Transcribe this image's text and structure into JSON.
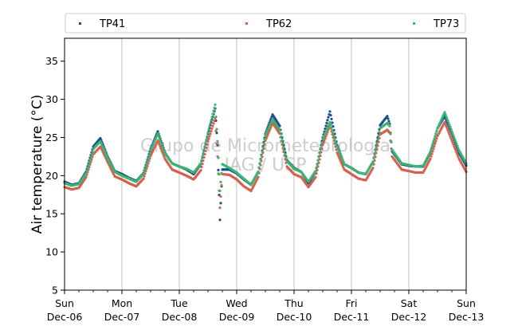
{
  "chart_data": {
    "type": "scatter",
    "title": "",
    "xlabel": "",
    "ylabel": "Air temperature (°C)",
    "ylim": [
      5,
      38
    ],
    "yticks": [
      5,
      10,
      15,
      20,
      25,
      30,
      35
    ],
    "xlim": [
      "2020-12-06",
      "2020-12-13"
    ],
    "xticks": [
      {
        "day": "Sun",
        "date": "Dec-06"
      },
      {
        "day": "Mon",
        "date": "Dec-07"
      },
      {
        "day": "Tue",
        "date": "Dec-08"
      },
      {
        "day": "Wed",
        "date": "Dec-09"
      },
      {
        "day": "Thu",
        "date": "Dec-10"
      },
      {
        "day": "Fri",
        "date": "Dec-11"
      },
      {
        "day": "Sat",
        "date": "Dec-12"
      },
      {
        "day": "Sun",
        "date": "Dec-13"
      }
    ],
    "grid": "vertical at day boundaries",
    "legend_position": "top, above plot",
    "watermark": [
      "Grupo de Micrometeorologia",
      "IAG / USP"
    ],
    "series": [
      {
        "name": "TP41",
        "color": "#1f4e8c",
        "points": [
          [
            "2020-12-06T00:00",
            19.2
          ],
          [
            "2020-12-06T03:00",
            18.8
          ],
          [
            "2020-12-06T06:00",
            19.0
          ],
          [
            "2020-12-06T09:00",
            20.5
          ],
          [
            "2020-12-06T12:00",
            23.8
          ],
          [
            "2020-12-06T15:00",
            24.9
          ],
          [
            "2020-12-06T18:00",
            22.5
          ],
          [
            "2020-12-06T21:00",
            20.6
          ],
          [
            "2020-12-07T00:00",
            20.2
          ],
          [
            "2020-12-07T03:00",
            19.7
          ],
          [
            "2020-12-07T06:00",
            19.3
          ],
          [
            "2020-12-07T09:00",
            20.3
          ],
          [
            "2020-12-07T12:00",
            23.5
          ],
          [
            "2020-12-07T15:00",
            25.8
          ],
          [
            "2020-12-07T18:00",
            23.0
          ],
          [
            "2020-12-07T21:00",
            21.6
          ],
          [
            "2020-12-08T00:00",
            21.2
          ],
          [
            "2020-12-08T03:00",
            20.8
          ],
          [
            "2020-12-08T06:00",
            20.2
          ],
          [
            "2020-12-08T09:00",
            21.5
          ],
          [
            "2020-12-08T12:00",
            25.5
          ],
          [
            "2020-12-08T15:00",
            28.8
          ],
          [
            "2020-12-08T16:00",
            24.0
          ],
          [
            "2020-12-08T17:00",
            14.2
          ],
          [
            "2020-12-08T18:00",
            20.8
          ],
          [
            "2020-12-08T21:00",
            20.8
          ],
          [
            "2020-12-09T00:00",
            20.3
          ],
          [
            "2020-12-09T03:00",
            19.5
          ],
          [
            "2020-12-09T06:00",
            18.8
          ],
          [
            "2020-12-09T09:00",
            20.5
          ],
          [
            "2020-12-09T12:00",
            25.5
          ],
          [
            "2020-12-09T15:00",
            28.0
          ],
          [
            "2020-12-09T18:00",
            26.5
          ],
          [
            "2020-12-09T21:00",
            22.0
          ],
          [
            "2020-12-10T00:00",
            21.0
          ],
          [
            "2020-12-10T03:00",
            20.5
          ],
          [
            "2020-12-10T06:00",
            19.0
          ],
          [
            "2020-12-10T09:00",
            20.5
          ],
          [
            "2020-12-10T12:00",
            25.0
          ],
          [
            "2020-12-10T15:00",
            28.4
          ],
          [
            "2020-12-10T18:00",
            24.0
          ],
          [
            "2020-12-10T21:00",
            21.5
          ],
          [
            "2020-12-11T00:00",
            21.0
          ],
          [
            "2020-12-11T03:00",
            20.4
          ],
          [
            "2020-12-11T06:00",
            20.2
          ],
          [
            "2020-12-11T09:00",
            21.8
          ],
          [
            "2020-12-11T12:00",
            26.6
          ],
          [
            "2020-12-11T15:00",
            27.8
          ],
          [
            "2020-12-11T16:00",
            26.8
          ],
          [
            "2020-12-11T17:00",
            23.2
          ],
          [
            "2020-12-11T21:00",
            21.5
          ],
          [
            "2020-12-12T00:00",
            21.3
          ],
          [
            "2020-12-12T03:00",
            21.2
          ],
          [
            "2020-12-12T06:00",
            21.2
          ],
          [
            "2020-12-12T09:00",
            23.0
          ],
          [
            "2020-12-12T12:00",
            26.2
          ],
          [
            "2020-12-12T15:00",
            27.8
          ],
          [
            "2020-12-12T18:00",
            25.5
          ],
          [
            "2020-12-12T21:00",
            23.0
          ],
          [
            "2020-12-13T00:00",
            21.3
          ]
        ]
      },
      {
        "name": "TP62",
        "color": "#d6604d",
        "points": [
          [
            "2020-12-06T00:00",
            18.5
          ],
          [
            "2020-12-06T03:00",
            18.2
          ],
          [
            "2020-12-06T06:00",
            18.4
          ],
          [
            "2020-12-06T09:00",
            19.8
          ],
          [
            "2020-12-06T12:00",
            22.8
          ],
          [
            "2020-12-06T15:00",
            23.8
          ],
          [
            "2020-12-06T18:00",
            21.8
          ],
          [
            "2020-12-06T21:00",
            19.9
          ],
          [
            "2020-12-07T00:00",
            19.5
          ],
          [
            "2020-12-07T03:00",
            19.0
          ],
          [
            "2020-12-07T06:00",
            18.6
          ],
          [
            "2020-12-07T09:00",
            19.6
          ],
          [
            "2020-12-07T12:00",
            22.6
          ],
          [
            "2020-12-07T15:00",
            24.6
          ],
          [
            "2020-12-07T18:00",
            22.2
          ],
          [
            "2020-12-07T21:00",
            20.8
          ],
          [
            "2020-12-08T00:00",
            20.4
          ],
          [
            "2020-12-08T03:00",
            20.0
          ],
          [
            "2020-12-08T06:00",
            19.5
          ],
          [
            "2020-12-08T09:00",
            20.7
          ],
          [
            "2020-12-08T12:00",
            24.5
          ],
          [
            "2020-12-08T15:00",
            27.5
          ],
          [
            "2020-12-08T16:00",
            22.5
          ],
          [
            "2020-12-08T17:00",
            15.8
          ],
          [
            "2020-12-08T18:00",
            20.2
          ],
          [
            "2020-12-08T21:00",
            20.1
          ],
          [
            "2020-12-09T00:00",
            19.5
          ],
          [
            "2020-12-09T03:00",
            18.6
          ],
          [
            "2020-12-09T06:00",
            18.0
          ],
          [
            "2020-12-09T09:00",
            19.8
          ],
          [
            "2020-12-09T12:00",
            24.6
          ],
          [
            "2020-12-09T15:00",
            26.9
          ],
          [
            "2020-12-09T18:00",
            25.5
          ],
          [
            "2020-12-09T21:00",
            21.2
          ],
          [
            "2020-12-10T00:00",
            20.2
          ],
          [
            "2020-12-10T03:00",
            19.8
          ],
          [
            "2020-12-10T06:00",
            18.5
          ],
          [
            "2020-12-10T09:00",
            19.8
          ],
          [
            "2020-12-10T12:00",
            24.0
          ],
          [
            "2020-12-10T15:00",
            26.6
          ],
          [
            "2020-12-10T18:00",
            23.0
          ],
          [
            "2020-12-10T21:00",
            20.8
          ],
          [
            "2020-12-11T00:00",
            20.2
          ],
          [
            "2020-12-11T03:00",
            19.6
          ],
          [
            "2020-12-11T06:00",
            19.4
          ],
          [
            "2020-12-11T09:00",
            21.0
          ],
          [
            "2020-12-11T12:00",
            25.4
          ],
          [
            "2020-12-11T15:00",
            26.0
          ],
          [
            "2020-12-11T16:00",
            25.6
          ],
          [
            "2020-12-11T17:00",
            22.5
          ],
          [
            "2020-12-11T21:00",
            20.8
          ],
          [
            "2020-12-12T00:00",
            20.6
          ],
          [
            "2020-12-12T03:00",
            20.4
          ],
          [
            "2020-12-12T06:00",
            20.4
          ],
          [
            "2020-12-12T09:00",
            22.2
          ],
          [
            "2020-12-12T12:00",
            25.2
          ],
          [
            "2020-12-12T15:00",
            27.0
          ],
          [
            "2020-12-12T18:00",
            24.6
          ],
          [
            "2020-12-12T21:00",
            22.2
          ],
          [
            "2020-12-13T00:00",
            20.5
          ]
        ]
      },
      {
        "name": "TP73",
        "color": "#3cb371",
        "points": [
          [
            "2020-12-06T00:00",
            19.0
          ],
          [
            "2020-12-06T03:00",
            18.7
          ],
          [
            "2020-12-06T06:00",
            18.9
          ],
          [
            "2020-12-06T09:00",
            20.3
          ],
          [
            "2020-12-06T12:00",
            23.5
          ],
          [
            "2020-12-06T15:00",
            24.5
          ],
          [
            "2020-12-06T18:00",
            22.3
          ],
          [
            "2020-12-06T21:00",
            20.5
          ],
          [
            "2020-12-07T00:00",
            20.0
          ],
          [
            "2020-12-07T03:00",
            19.6
          ],
          [
            "2020-12-07T06:00",
            19.2
          ],
          [
            "2020-12-07T09:00",
            20.2
          ],
          [
            "2020-12-07T12:00",
            23.3
          ],
          [
            "2020-12-07T15:00",
            25.5
          ],
          [
            "2020-12-07T18:00",
            22.9
          ],
          [
            "2020-12-07T21:00",
            21.6
          ],
          [
            "2020-12-08T00:00",
            21.2
          ],
          [
            "2020-12-08T03:00",
            20.9
          ],
          [
            "2020-12-08T06:00",
            20.4
          ],
          [
            "2020-12-08T09:00",
            21.6
          ],
          [
            "2020-12-08T12:00",
            25.6
          ],
          [
            "2020-12-08T15:00",
            29.3
          ],
          [
            "2020-12-08T16:00",
            24.5
          ],
          [
            "2020-12-08T17:00",
            18.0
          ],
          [
            "2020-12-08T18:00",
            21.5
          ],
          [
            "2020-12-08T21:00",
            21.0
          ],
          [
            "2020-12-09T00:00",
            20.4
          ],
          [
            "2020-12-09T03:00",
            19.6
          ],
          [
            "2020-12-09T06:00",
            18.8
          ],
          [
            "2020-12-09T09:00",
            20.5
          ],
          [
            "2020-12-09T12:00",
            25.3
          ],
          [
            "2020-12-09T15:00",
            27.4
          ],
          [
            "2020-12-09T18:00",
            26.0
          ],
          [
            "2020-12-09T21:00",
            21.9
          ],
          [
            "2020-12-10T00:00",
            20.9
          ],
          [
            "2020-12-10T03:00",
            20.5
          ],
          [
            "2020-12-10T06:00",
            19.2
          ],
          [
            "2020-12-10T09:00",
            20.6
          ],
          [
            "2020-12-10T12:00",
            24.8
          ],
          [
            "2020-12-10T15:00",
            27.0
          ],
          [
            "2020-12-10T18:00",
            23.8
          ],
          [
            "2020-12-10T21:00",
            21.5
          ],
          [
            "2020-12-11T00:00",
            21.0
          ],
          [
            "2020-12-11T03:00",
            20.4
          ],
          [
            "2020-12-11T06:00",
            20.2
          ],
          [
            "2020-12-11T09:00",
            21.8
          ],
          [
            "2020-12-11T12:00",
            26.2
          ],
          [
            "2020-12-11T15:00",
            26.9
          ],
          [
            "2020-12-11T16:00",
            26.5
          ],
          [
            "2020-12-11T17:00",
            23.4
          ],
          [
            "2020-12-11T21:00",
            21.6
          ],
          [
            "2020-12-12T00:00",
            21.4
          ],
          [
            "2020-12-12T03:00",
            21.2
          ],
          [
            "2020-12-12T06:00",
            21.3
          ],
          [
            "2020-12-12T09:00",
            23.1
          ],
          [
            "2020-12-12T12:00",
            26.2
          ],
          [
            "2020-12-12T15:00",
            28.3
          ],
          [
            "2020-12-12T18:00",
            25.8
          ],
          [
            "2020-12-12T21:00",
            23.3
          ],
          [
            "2020-12-13T00:00",
            21.6
          ]
        ]
      }
    ]
  }
}
